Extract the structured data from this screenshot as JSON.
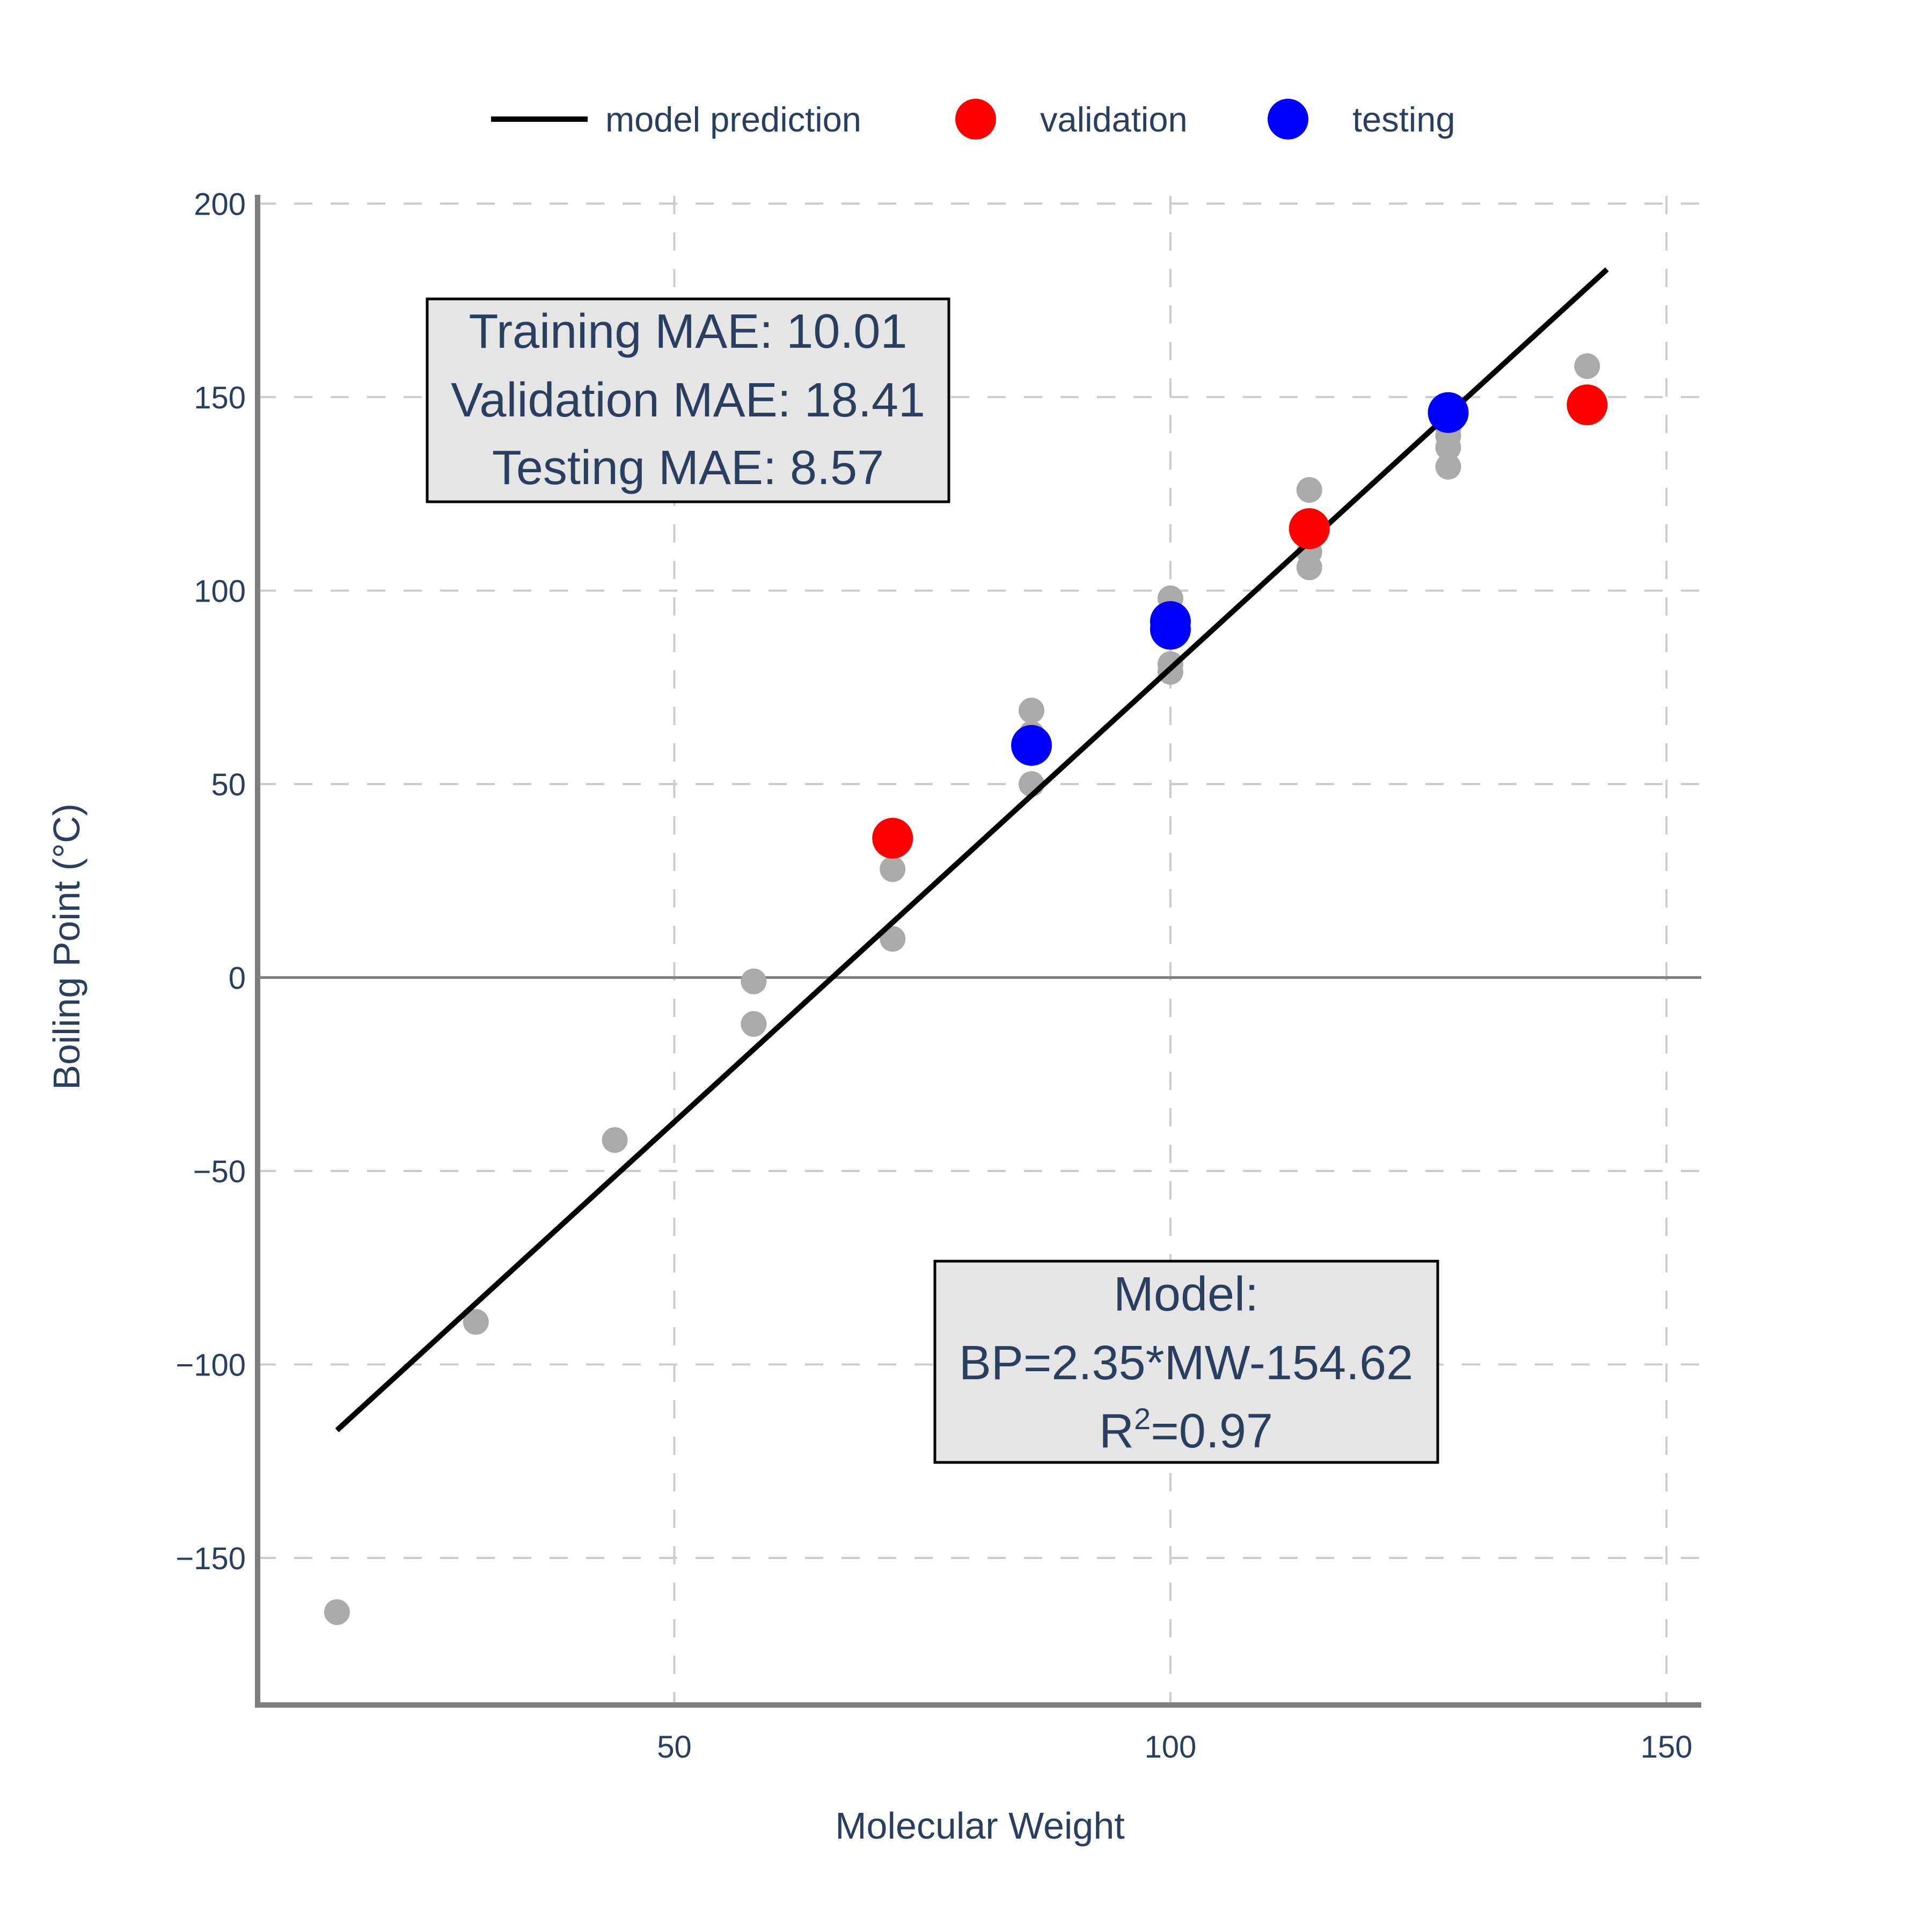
{
  "chart_data": {
    "type": "scatter",
    "xlabel": "Molecular Weight",
    "ylabel": "Boiling Point (°C)",
    "xlim": [
      8,
      153.5
    ],
    "ylim": [
      -188,
      202
    ],
    "x_ticks": [
      50,
      100,
      150
    ],
    "x_tick_labels": [
      "50",
      "100",
      "150"
    ],
    "y_ticks": [
      -150,
      -100,
      -50,
      0,
      50,
      100,
      150,
      200
    ],
    "y_tick_labels": [
      "−150",
      "−100",
      "−50",
      "0",
      "50",
      "100",
      "150",
      "200"
    ],
    "grid": true,
    "legend_position": "top-center",
    "series": [
      {
        "name": "",
        "kind": "scatter",
        "color": "#aaaaaa",
        "points": [
          [
            16,
            -164
          ],
          [
            30,
            -89
          ],
          [
            44,
            -42
          ],
          [
            58,
            -12
          ],
          [
            58,
            -1
          ],
          [
            72,
            10
          ],
          [
            72,
            28
          ],
          [
            86,
            50
          ],
          [
            86,
            58
          ],
          [
            86,
            60
          ],
          [
            86,
            63
          ],
          [
            86,
            69
          ],
          [
            100,
            79
          ],
          [
            100,
            81
          ],
          [
            100,
            90
          ],
          [
            100,
            93
          ],
          [
            100,
            98
          ],
          [
            114,
            106
          ],
          [
            114,
            110
          ],
          [
            114,
            115
          ],
          [
            114,
            118
          ],
          [
            114,
            126
          ],
          [
            128,
            132
          ],
          [
            128,
            137
          ],
          [
            128,
            140
          ],
          [
            128,
            142
          ],
          [
            128,
            146
          ],
          [
            142,
            158
          ]
        ]
      },
      {
        "name": "model prediction",
        "kind": "line",
        "color": "#000000",
        "points": [
          [
            16,
            -117
          ],
          [
            144,
            183
          ]
        ]
      },
      {
        "name": "validation",
        "kind": "scatter",
        "color": "#ff0000",
        "points": [
          [
            72,
            36
          ],
          [
            114,
            116
          ],
          [
            142,
            148
          ]
        ]
      },
      {
        "name": "testing",
        "kind": "scatter",
        "color": "#0000ff",
        "points": [
          [
            86,
            60
          ],
          [
            100,
            90
          ],
          [
            100,
            92
          ],
          [
            128,
            146
          ]
        ]
      }
    ],
    "annotations": [
      {
        "lines": [
          "Training MAE: 10.01",
          "Validation MAE: 18.41",
          "Testing MAE: 8.57"
        ],
        "center": [
          50,
          149
        ]
      },
      {
        "lines": [
          "Model:",
          "BP=2.35*MW-154.62",
          "R2=0.97"
        ],
        "center": [
          100,
          -101
        ]
      }
    ]
  },
  "model_box": {
    "line1": "Model:",
    "line2": "BP=2.35*MW-154.62",
    "r_letter": "R",
    "r_sup": "2",
    "r_value": "=0.97"
  }
}
